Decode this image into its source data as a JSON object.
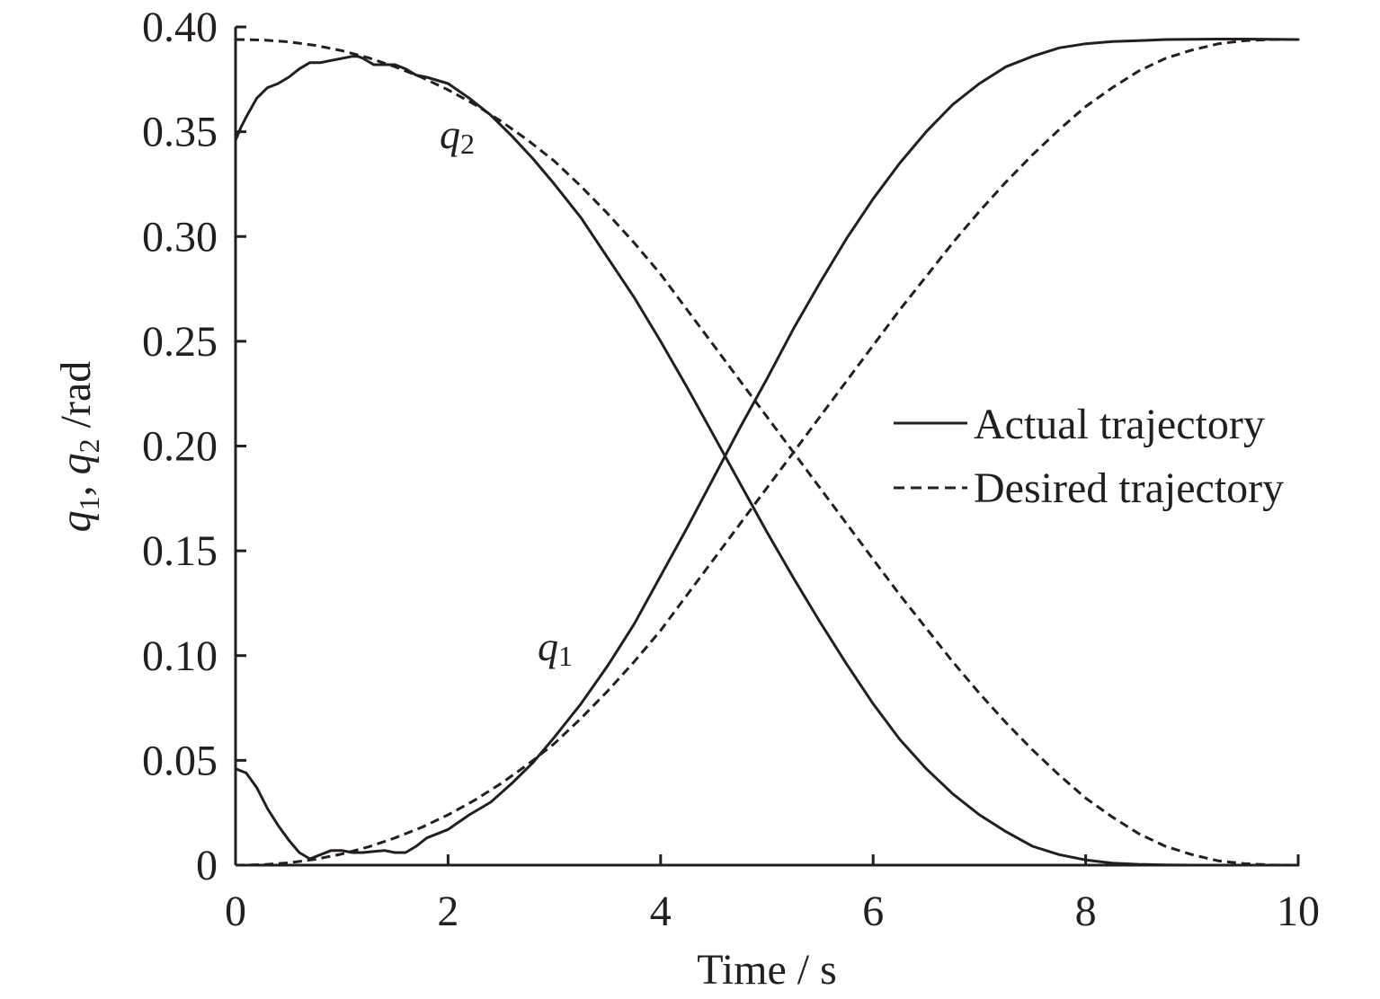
{
  "chart_data": {
    "type": "line",
    "xlabel": "Time / s",
    "ylabel": {
      "sym1": "q",
      "sub1": "1",
      "sep": ", ",
      "sym2": "q",
      "sub2": "2",
      "unit": " /rad"
    },
    "xlim": [
      0,
      10
    ],
    "ylim": [
      0,
      0.4
    ],
    "xticks": [
      0,
      2,
      4,
      6,
      8,
      10
    ],
    "xtick_labels": [
      "0",
      "2",
      "4",
      "6",
      "8",
      "10"
    ],
    "yticks": [
      0,
      0.05,
      0.1,
      0.15,
      0.2,
      0.25,
      0.3,
      0.35,
      0.4
    ],
    "ytick_labels": [
      "0",
      "0.05",
      "0.10",
      "0.15",
      "0.20",
      "0.25",
      "0.30",
      "0.35",
      "0.40"
    ],
    "grid": false,
    "legend": {
      "placement": "center-right",
      "entries": [
        {
          "label": "Actual trajectory",
          "style": "solid"
        },
        {
          "label": "Desired trajectory",
          "style": "dashed"
        }
      ]
    },
    "annotations": [
      {
        "sym": "q",
        "sub": "2",
        "x": 1.07,
        "y": 0.345
      },
      {
        "sym": "q",
        "sub": "1",
        "x": 2.0,
        "y": 0.1
      }
    ],
    "series": [
      {
        "legend": "Actual trajectory",
        "curve": "q1",
        "style": "solid",
        "x": [
          0,
          0.1,
          0.2,
          0.3,
          0.4,
          0.5,
          0.6,
          0.7,
          0.8,
          0.9,
          1.0,
          1.1,
          1.2,
          1.3,
          1.4,
          1.5,
          1.6,
          1.7,
          1.8,
          2.0,
          2.2,
          2.4,
          2.6,
          2.8,
          3.0,
          3.25,
          3.5,
          3.75,
          4.0,
          4.25,
          4.5,
          4.75,
          5.0,
          5.25,
          5.5,
          5.75,
          6.0,
          6.25,
          6.5,
          6.75,
          7.0,
          7.25,
          7.5,
          7.75,
          8.0,
          8.25,
          8.5,
          8.75,
          9.0,
          9.25,
          9.5,
          9.75,
          10.0
        ],
        "y": [
          0.046,
          0.044,
          0.037,
          0.027,
          0.019,
          0.012,
          0.006,
          0.003,
          0.005,
          0.007,
          0.007,
          0.006,
          0.006,
          0.0065,
          0.007,
          0.006,
          0.006,
          0.009,
          0.013,
          0.017,
          0.024,
          0.03,
          0.039,
          0.049,
          0.061,
          0.077,
          0.095,
          0.115,
          0.138,
          0.161,
          0.185,
          0.209,
          0.232,
          0.256,
          0.278,
          0.299,
          0.318,
          0.335,
          0.35,
          0.363,
          0.373,
          0.381,
          0.386,
          0.39,
          0.392,
          0.393,
          0.3935,
          0.394,
          0.3941,
          0.3942,
          0.3942,
          0.3941,
          0.394
        ]
      },
      {
        "legend": "Desired trajectory",
        "curve": "q1",
        "style": "dashed",
        "x": [
          0,
          0.25,
          0.5,
          0.75,
          1.0,
          1.25,
          1.5,
          1.75,
          2.0,
          2.25,
          2.5,
          2.75,
          3.0,
          3.25,
          3.5,
          3.75,
          4.0,
          4.25,
          4.5,
          4.75,
          5.0,
          5.25,
          5.5,
          5.75,
          6.0,
          6.25,
          6.5,
          6.75,
          7.0,
          7.25,
          7.5,
          7.75,
          8.0,
          8.25,
          8.5,
          8.75,
          9.0,
          9.25,
          9.5,
          9.75,
          10.0
        ],
        "y": [
          0,
          0.0002,
          0.0011,
          0.0028,
          0.0053,
          0.0087,
          0.013,
          0.018,
          0.024,
          0.031,
          0.039,
          0.048,
          0.058,
          0.07,
          0.083,
          0.097,
          0.112,
          0.129,
          0.146,
          0.163,
          0.18,
          0.197,
          0.214,
          0.231,
          0.248,
          0.265,
          0.281,
          0.297,
          0.312,
          0.326,
          0.339,
          0.351,
          0.362,
          0.371,
          0.379,
          0.385,
          0.389,
          0.392,
          0.3935,
          0.394,
          0.394
        ]
      },
      {
        "legend": "Actual trajectory",
        "curve": "q2",
        "style": "solid",
        "x": [
          0,
          0.05,
          0.1,
          0.2,
          0.3,
          0.4,
          0.5,
          0.6,
          0.7,
          0.8,
          0.9,
          1.0,
          1.1,
          1.15,
          1.2,
          1.3,
          1.4,
          1.5,
          1.6,
          1.7,
          1.8,
          2.0,
          2.2,
          2.4,
          2.6,
          2.8,
          3.0,
          3.25,
          3.5,
          3.75,
          4.0,
          4.25,
          4.5,
          4.75,
          5.0,
          5.25,
          5.5,
          5.75,
          6.0,
          6.25,
          6.5,
          6.75,
          7.0,
          7.25,
          7.5,
          7.75,
          8.0,
          8.25,
          8.5,
          8.75,
          9.0,
          9.25,
          9.5,
          9.75,
          10.0
        ],
        "y": [
          0.346,
          0.352,
          0.357,
          0.366,
          0.371,
          0.373,
          0.376,
          0.38,
          0.383,
          0.383,
          0.384,
          0.385,
          0.386,
          0.386,
          0.385,
          0.382,
          0.382,
          0.382,
          0.38,
          0.377,
          0.376,
          0.373,
          0.366,
          0.358,
          0.348,
          0.337,
          0.325,
          0.309,
          0.29,
          0.271,
          0.25,
          0.228,
          0.205,
          0.182,
          0.159,
          0.137,
          0.116,
          0.096,
          0.077,
          0.06,
          0.046,
          0.034,
          0.024,
          0.016,
          0.009,
          0.005,
          0.0025,
          0.001,
          0.0004,
          0.0001,
          0,
          0,
          0,
          0,
          0
        ]
      },
      {
        "legend": "Desired trajectory",
        "curve": "q2",
        "style": "dashed",
        "x": [
          0,
          0.25,
          0.5,
          0.75,
          1.0,
          1.25,
          1.5,
          1.75,
          2.0,
          2.25,
          2.5,
          2.75,
          3.0,
          3.25,
          3.5,
          3.75,
          4.0,
          4.25,
          4.5,
          4.75,
          5.0,
          5.25,
          5.5,
          5.75,
          6.0,
          6.25,
          6.5,
          6.75,
          7.0,
          7.25,
          7.5,
          7.75,
          8.0,
          8.25,
          8.5,
          8.75,
          9.0,
          9.25,
          9.5,
          9.75,
          10.0
        ],
        "y": [
          0.394,
          0.3938,
          0.3929,
          0.3912,
          0.3887,
          0.3853,
          0.381,
          0.376,
          0.37,
          0.363,
          0.355,
          0.346,
          0.336,
          0.324,
          0.311,
          0.297,
          0.282,
          0.265,
          0.248,
          0.231,
          0.214,
          0.197,
          0.18,
          0.163,
          0.146,
          0.129,
          0.113,
          0.097,
          0.082,
          0.068,
          0.055,
          0.043,
          0.032,
          0.023,
          0.015,
          0.009,
          0.005,
          0.002,
          0.0007,
          0.0001,
          0
        ]
      }
    ]
  }
}
